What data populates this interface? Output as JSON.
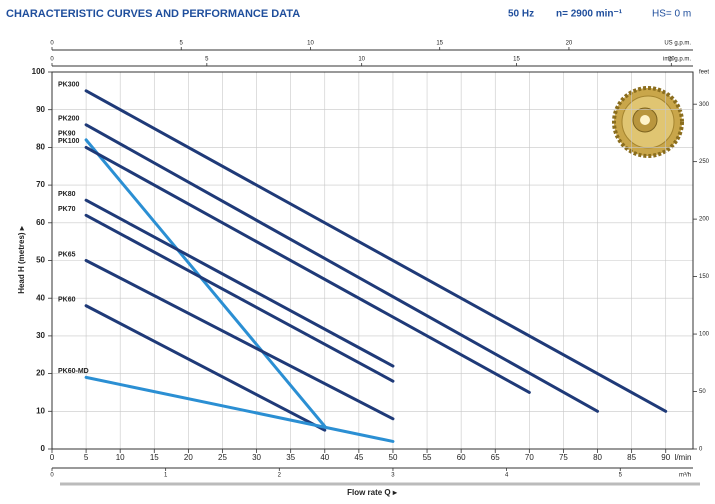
{
  "chart_data": {
    "type": "line",
    "title": "CHARACTERISTIC CURVES AND PERFORMANCE DATA",
    "header_notes": [
      "50 Hz",
      "n= 2900 min⁻¹",
      "HS= 0 m"
    ],
    "xlabel": "Flow rate Q ▸",
    "xunit": "l/min",
    "ylabel": "Head H (metres) ▸",
    "xlim": [
      0,
      94
    ],
    "xticks": [
      0,
      5,
      10,
      15,
      20,
      25,
      30,
      35,
      40,
      45,
      50,
      55,
      60,
      65,
      70,
      75,
      80,
      85,
      90
    ],
    "ylim": [
      0,
      100
    ],
    "yticks": [
      0,
      10,
      20,
      30,
      40,
      50,
      60,
      70,
      80,
      90,
      100
    ],
    "grid": true,
    "y2label": "feet",
    "y2lim": [
      0,
      328
    ],
    "y2ticks": [
      0,
      50,
      100,
      150,
      200,
      250,
      300
    ],
    "top_axes": [
      {
        "label": "US g.p.m.",
        "xlim": [
          0,
          24.8
        ],
        "xticks": [
          0,
          5,
          10,
          15,
          20
        ]
      },
      {
        "label": "imp g.p.m.",
        "xlim": [
          0,
          20.7
        ],
        "xticks": [
          0,
          5,
          10,
          15,
          20
        ]
      }
    ],
    "bottom_axis2": {
      "label": "m³/h",
      "xlim": [
        0,
        5.64
      ],
      "xticks": [
        0,
        1,
        2,
        3,
        4,
        5
      ]
    },
    "series": [
      {
        "name": "PK300",
        "color": "#1f3a78",
        "x": [
          5,
          90
        ],
        "values": [
          95,
          10
        ]
      },
      {
        "name": "PK200",
        "color": "#1f3a78",
        "x": [
          5,
          80
        ],
        "values": [
          86,
          10
        ]
      },
      {
        "name": "PK90",
        "color": "#2b8fd3",
        "x": [
          5,
          40
        ],
        "values": [
          82,
          6
        ]
      },
      {
        "name": "PK100",
        "color": "#1f3a78",
        "x": [
          5,
          70
        ],
        "values": [
          80,
          15
        ]
      },
      {
        "name": "PK80",
        "color": "#1f3a78",
        "x": [
          5,
          50
        ],
        "values": [
          66,
          22
        ]
      },
      {
        "name": "PK70",
        "color": "#1f3a78",
        "x": [
          5,
          50
        ],
        "values": [
          62,
          18
        ]
      },
      {
        "name": "PK65",
        "color": "#1f3a78",
        "x": [
          5,
          50
        ],
        "values": [
          50,
          8
        ]
      },
      {
        "name": "PK60",
        "color": "#1f3a78",
        "x": [
          5,
          40
        ],
        "values": [
          38,
          5
        ]
      },
      {
        "name": "PK60-MD",
        "color": "#2b8fd3",
        "x": [
          5,
          50
        ],
        "values": [
          19,
          2
        ]
      }
    ]
  }
}
